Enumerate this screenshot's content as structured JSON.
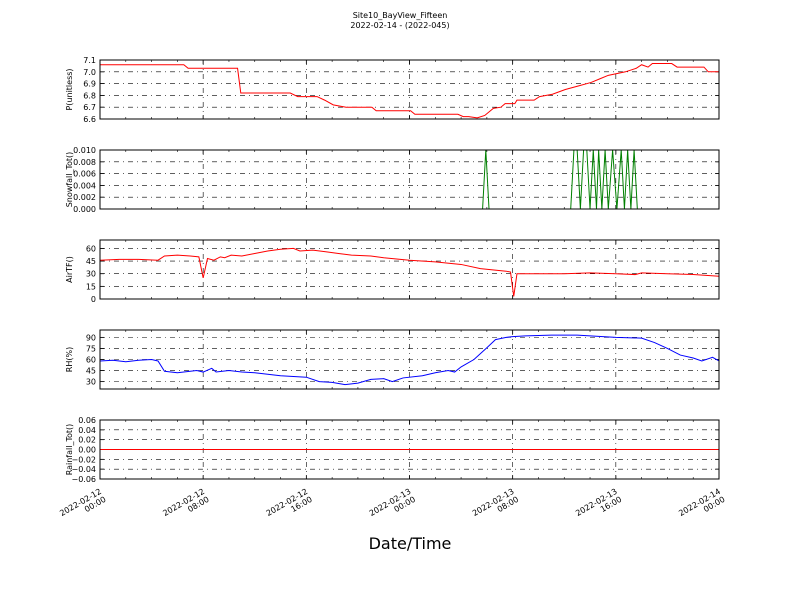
{
  "figure": {
    "title_line1": "Site10_BayView_Fifteen",
    "title_line2": "2022-02-14 - (2022-045)",
    "xlabel": "Date/Time"
  },
  "chart_data": {
    "type": "line",
    "x_ticks": [
      {
        "line1": "2022-02-12",
        "line2": "00:00"
      },
      {
        "line1": "2022-02-12",
        "line2": "08:00"
      },
      {
        "line1": "2022-02-12",
        "line2": "16:00"
      },
      {
        "line1": "2022-02-13",
        "line2": "00:00"
      },
      {
        "line1": "2022-02-13",
        "line2": "08:00"
      },
      {
        "line1": "2022-02-13",
        "line2": "16:00"
      },
      {
        "line1": "2022-02-14",
        "line2": "00:00"
      }
    ],
    "xlim": [
      "2022-02-12 00:00",
      "2022-02-14 00:00"
    ],
    "grid": true,
    "panels": [
      {
        "ylabel": "P(unitless)",
        "ylim": [
          6.6,
          7.1
        ],
        "yticks": [
          "7.1",
          "7.0",
          "6.9",
          "6.8",
          "6.7",
          "6.6"
        ],
        "tick_values": [
          7.1,
          7.0,
          6.9,
          6.8,
          6.7,
          6.6
        ],
        "color": "#ff0000",
        "points": [
          [
            "2022-02-12 00:00",
            7.06
          ],
          [
            "2022-02-12 06:30",
            7.06
          ],
          [
            "2022-02-12 06:50",
            7.03
          ],
          [
            "2022-02-12 10:40",
            7.03
          ],
          [
            "2022-02-12 10:55",
            6.82
          ],
          [
            "2022-02-12 14:45",
            6.82
          ],
          [
            "2022-02-12 15:20",
            6.79
          ],
          [
            "2022-02-12 16:50",
            6.79
          ],
          [
            "2022-02-12 17:25",
            6.76
          ],
          [
            "2022-02-12 18:05",
            6.72
          ],
          [
            "2022-02-12 19:05",
            6.7
          ],
          [
            "2022-02-12 21:05",
            6.7
          ],
          [
            "2022-02-12 21:25",
            6.67
          ],
          [
            "2022-02-13 00:05",
            6.67
          ],
          [
            "2022-02-13 00:25",
            6.64
          ],
          [
            "2022-02-13 03:45",
            6.64
          ],
          [
            "2022-02-13 04:10",
            6.62
          ],
          [
            "2022-02-13 04:35",
            6.62
          ],
          [
            "2022-02-13 05:15",
            6.61
          ],
          [
            "2022-02-13 05:50",
            6.63
          ],
          [
            "2022-02-13 06:30",
            6.69
          ],
          [
            "2022-02-13 07:05",
            6.7
          ],
          [
            "2022-02-13 07:25",
            6.73
          ],
          [
            "2022-02-13 07:50",
            6.73
          ],
          [
            "2022-02-13 08:10",
            6.73
          ],
          [
            "2022-02-13 08:20",
            6.76
          ],
          [
            "2022-02-13 09:40",
            6.76
          ],
          [
            "2022-02-13 10:05",
            6.79
          ],
          [
            "2022-02-13 11:05",
            6.81
          ],
          [
            "2022-02-13 12:05",
            6.85
          ],
          [
            "2022-02-13 13:05",
            6.88
          ],
          [
            "2022-02-13 14:05",
            6.91
          ],
          [
            "2022-02-13 14:45",
            6.94
          ],
          [
            "2022-02-13 15:25",
            6.97
          ],
          [
            "2022-02-13 16:45",
            7.0
          ],
          [
            "2022-02-13 17:35",
            7.03
          ],
          [
            "2022-02-13 18:00",
            7.06
          ],
          [
            "2022-02-13 18:30",
            7.04
          ],
          [
            "2022-02-13 18:50",
            7.07
          ],
          [
            "2022-02-13 20:20",
            7.07
          ],
          [
            "2022-02-13 20:45",
            7.04
          ],
          [
            "2022-02-13 22:50",
            7.04
          ],
          [
            "2022-02-13 23:10",
            7.0
          ],
          [
            "2022-02-14 00:00",
            7.0
          ]
        ]
      },
      {
        "ylabel": "Snowfall_Tot()",
        "ylim": [
          0.0,
          0.01
        ],
        "yticks": [
          "0.010",
          "0.008",
          "0.006",
          "0.004",
          "0.002",
          "0.000"
        ],
        "tick_values": [
          0.01,
          0.008,
          0.006,
          0.004,
          0.002,
          0.0
        ],
        "color": "#008000",
        "points": [
          [
            "2022-02-12 00:00",
            0.0
          ],
          [
            "2022-02-13 05:40",
            0.0
          ],
          [
            "2022-02-13 05:55",
            0.01
          ],
          [
            "2022-02-13 06:10",
            0.0
          ],
          [
            "2022-02-13 12:30",
            0.0
          ],
          [
            "2022-02-13 12:45",
            0.01
          ],
          [
            "2022-02-13 13:00",
            0.01
          ],
          [
            "2022-02-13 13:15",
            0.0
          ],
          [
            "2022-02-13 13:30",
            0.01
          ],
          [
            "2022-02-13 13:45",
            0.01
          ],
          [
            "2022-02-13 14:00",
            0.0
          ],
          [
            "2022-02-13 14:15",
            0.01
          ],
          [
            "2022-02-13 14:30",
            0.0
          ],
          [
            "2022-02-13 14:40",
            0.01
          ],
          [
            "2022-02-13 14:55",
            0.0
          ],
          [
            "2022-02-13 15:10",
            0.01
          ],
          [
            "2022-02-13 15:25",
            0.0
          ],
          [
            "2022-02-13 15:45",
            0.01
          ],
          [
            "2022-02-13 16:05",
            0.0
          ],
          [
            "2022-02-13 16:25",
            0.01
          ],
          [
            "2022-02-13 16:40",
            0.0
          ],
          [
            "2022-02-13 16:55",
            0.01
          ],
          [
            "2022-02-13 17:10",
            0.0
          ],
          [
            "2022-02-13 17:25",
            0.01
          ],
          [
            "2022-02-13 17:40",
            0.0
          ],
          [
            "2022-02-14 00:00",
            0.0
          ]
        ]
      },
      {
        "ylabel": "AirTF()",
        "ylim": [
          0,
          70
        ],
        "yticks": [
          "60",
          "45",
          "30",
          "15",
          "0"
        ],
        "tick_values": [
          60,
          45,
          30,
          15,
          0
        ],
        "color": "#ff0000",
        "points": [
          [
            "2022-02-12 00:00",
            46
          ],
          [
            "2022-02-12 01:30",
            47
          ],
          [
            "2022-02-12 03:00",
            47
          ],
          [
            "2022-02-12 04:30",
            46
          ],
          [
            "2022-02-12 05:00",
            51
          ],
          [
            "2022-02-12 06:00",
            52
          ],
          [
            "2022-02-12 07:00",
            51
          ],
          [
            "2022-02-12 07:40",
            50
          ],
          [
            "2022-02-12 08:00",
            25
          ],
          [
            "2022-02-12 08:20",
            48
          ],
          [
            "2022-02-12 08:50",
            46
          ],
          [
            "2022-02-12 09:20",
            50
          ],
          [
            "2022-02-12 09:40",
            49
          ],
          [
            "2022-02-12 10:10",
            52
          ],
          [
            "2022-02-12 11:00",
            51
          ],
          [
            "2022-02-12 12:00",
            54
          ],
          [
            "2022-02-12 13:00",
            57
          ],
          [
            "2022-02-12 14:00",
            59
          ],
          [
            "2022-02-12 15:00",
            60
          ],
          [
            "2022-02-12 15:30",
            57
          ],
          [
            "2022-02-12 16:30",
            58
          ],
          [
            "2022-02-12 17:30",
            56
          ],
          [
            "2022-02-12 18:30",
            54
          ],
          [
            "2022-02-12 19:30",
            52
          ],
          [
            "2022-02-12 21:00",
            51
          ],
          [
            "2022-02-12 22:00",
            49
          ],
          [
            "2022-02-13 00:00",
            46
          ],
          [
            "2022-02-13 02:00",
            44
          ],
          [
            "2022-02-13 04:00",
            41
          ],
          [
            "2022-02-13 05:30",
            36
          ],
          [
            "2022-02-13 07:30",
            33
          ],
          [
            "2022-02-13 07:50",
            32
          ],
          [
            "2022-02-13 08:05",
            3
          ],
          [
            "2022-02-13 08:20",
            30
          ],
          [
            "2022-02-13 10:00",
            30
          ],
          [
            "2022-02-13 12:00",
            30
          ],
          [
            "2022-02-13 14:00",
            31
          ],
          [
            "2022-02-13 16:00",
            30
          ],
          [
            "2022-02-13 17:30",
            29
          ],
          [
            "2022-02-13 18:00",
            31
          ],
          [
            "2022-02-13 20:00",
            30
          ],
          [
            "2022-02-13 22:00",
            29
          ],
          [
            "2022-02-14 00:00",
            27
          ]
        ]
      },
      {
        "ylabel": "RH(%)",
        "ylim": [
          20,
          100
        ],
        "yticks": [
          "90",
          "75",
          "60",
          "45",
          "30"
        ],
        "tick_values": [
          90,
          75,
          60,
          45,
          30
        ],
        "color": "#0000ff",
        "points": [
          [
            "2022-02-12 00:00",
            58
          ],
          [
            "2022-02-12 01:00",
            59
          ],
          [
            "2022-02-12 02:00",
            57
          ],
          [
            "2022-02-12 03:00",
            59
          ],
          [
            "2022-02-12 04:00",
            60
          ],
          [
            "2022-02-12 04:30",
            58
          ],
          [
            "2022-02-12 05:00",
            44
          ],
          [
            "2022-02-12 06:00",
            42
          ],
          [
            "2022-02-12 07:00",
            44
          ],
          [
            "2022-02-12 07:30",
            45
          ],
          [
            "2022-02-12 08:00",
            43
          ],
          [
            "2022-02-12 08:40",
            48
          ],
          [
            "2022-02-12 09:00",
            43
          ],
          [
            "2022-02-12 10:00",
            45
          ],
          [
            "2022-02-12 11:00",
            43
          ],
          [
            "2022-02-12 12:00",
            42
          ],
          [
            "2022-02-12 13:00",
            40
          ],
          [
            "2022-02-12 14:00",
            38
          ],
          [
            "2022-02-12 15:00",
            37
          ],
          [
            "2022-02-12 16:00",
            36
          ],
          [
            "2022-02-12 17:00",
            30
          ],
          [
            "2022-02-12 18:00",
            29
          ],
          [
            "2022-02-12 19:00",
            26
          ],
          [
            "2022-02-12 20:00",
            28
          ],
          [
            "2022-02-12 21:00",
            33
          ],
          [
            "2022-02-12 22:00",
            34
          ],
          [
            "2022-02-12 22:40",
            30
          ],
          [
            "2022-02-12 23:30",
            35
          ],
          [
            "2022-02-13 01:00",
            38
          ],
          [
            "2022-02-13 02:00",
            42
          ],
          [
            "2022-02-13 03:00",
            45
          ],
          [
            "2022-02-13 03:30",
            43
          ],
          [
            "2022-02-13 04:00",
            50
          ],
          [
            "2022-02-13 05:00",
            60
          ],
          [
            "2022-02-13 06:00",
            76
          ],
          [
            "2022-02-13 06:40",
            87
          ],
          [
            "2022-02-13 07:30",
            90
          ],
          [
            "2022-02-13 08:00",
            91
          ],
          [
            "2022-02-13 09:00",
            92
          ],
          [
            "2022-02-13 11:00",
            93
          ],
          [
            "2022-02-13 13:00",
            93
          ],
          [
            "2022-02-13 15:00",
            91
          ],
          [
            "2022-02-13 16:00",
            90
          ],
          [
            "2022-02-13 18:00",
            89
          ],
          [
            "2022-02-13 19:00",
            83
          ],
          [
            "2022-02-13 20:00",
            75
          ],
          [
            "2022-02-13 21:00",
            66
          ],
          [
            "2022-02-13 22:00",
            62
          ],
          [
            "2022-02-13 22:40",
            58
          ],
          [
            "2022-02-13 23:30",
            63
          ],
          [
            "2022-02-14 00:00",
            58
          ]
        ]
      },
      {
        "ylabel": "Rainfall_Tot()",
        "ylim": [
          -0.06,
          0.06
        ],
        "yticks": [
          "0.06",
          "0.04",
          "0.02",
          "0.00",
          "−0.02",
          "−0.04",
          "−0.06"
        ],
        "tick_values": [
          0.06,
          0.04,
          0.02,
          0.0,
          -0.02,
          -0.04,
          -0.06
        ],
        "color": "#ff0000",
        "points": [
          [
            "2022-02-12 00:00",
            0.0
          ],
          [
            "2022-02-14 00:00",
            0.0
          ]
        ]
      }
    ]
  }
}
